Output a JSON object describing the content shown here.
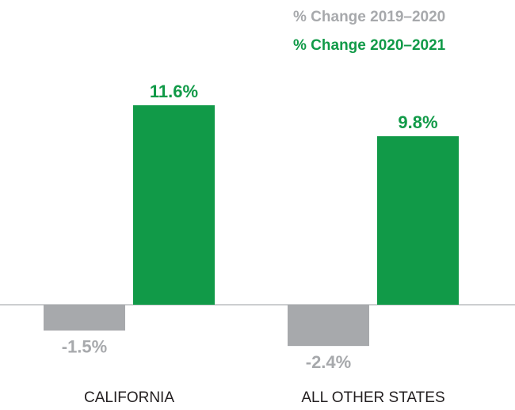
{
  "chart_data": {
    "type": "bar",
    "categories": [
      "CALIFORNIA",
      "ALL OTHER STATES"
    ],
    "series": [
      {
        "name": "% Change 2019–2020",
        "color": "#a7a9ac",
        "values": [
          -1.5,
          -2.4
        ],
        "value_labels": [
          "-1.5%",
          "-2.4%"
        ]
      },
      {
        "name": "% Change 2020–2021",
        "color": "#119a48",
        "values": [
          11.6,
          9.8
        ],
        "value_labels": [
          "11.6%",
          "9.8%"
        ]
      }
    ],
    "legend": "top-right"
  }
}
